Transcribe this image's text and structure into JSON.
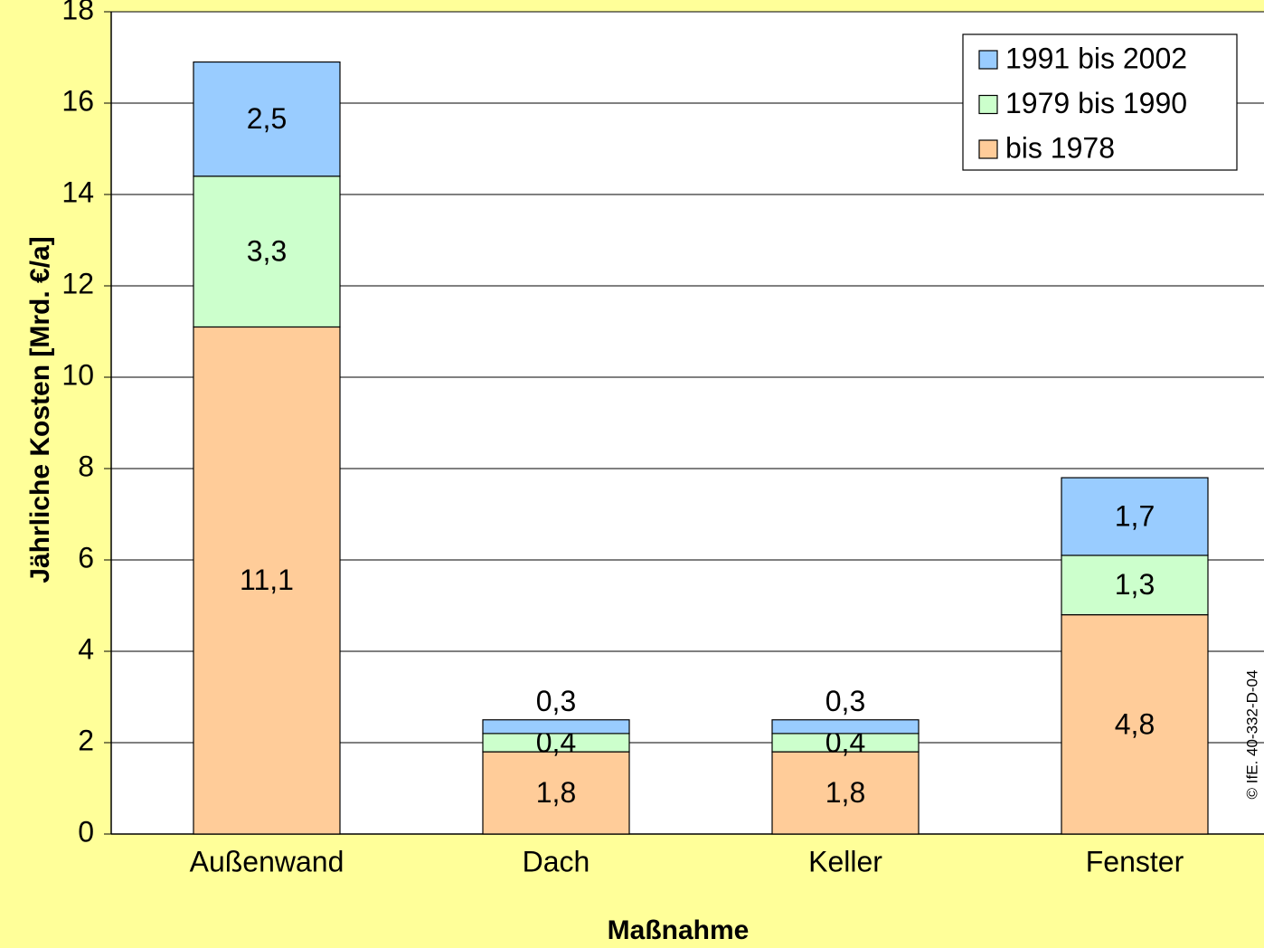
{
  "chart_data": {
    "type": "stacked_bar",
    "y_label": "Jährliche Kosten [Mrd. €/a]",
    "x_label": "Maßnahme",
    "annotation": "© IfE. 40-332-D-04",
    "categories": [
      "Außenwand",
      "Dach",
      "Keller",
      "Fenster"
    ],
    "series": [
      {
        "name": "bis 1978",
        "color": "#ffcc99",
        "values": [
          11.1,
          1.8,
          1.8,
          4.8
        ],
        "value_labels": [
          "11,1",
          "1,8",
          "1,8",
          "4,8"
        ]
      },
      {
        "name": "1979 bis 1990",
        "color": "#ccffcc",
        "values": [
          3.3,
          0.4,
          0.4,
          1.3
        ],
        "value_labels": [
          "3,3",
          "0,4",
          "0,4",
          "1,3"
        ]
      },
      {
        "name": "1991 bis 2002",
        "color": "#99ccff",
        "values": [
          2.5,
          0.3,
          0.3,
          1.7
        ],
        "value_labels": [
          "2,5",
          "0,3",
          "0,3",
          "1,7"
        ]
      }
    ],
    "ylim": [
      0,
      18
    ],
    "yticks": [
      0,
      2,
      4,
      6,
      8,
      10,
      12,
      14,
      16,
      18
    ],
    "grid": true,
    "legend": "upper right"
  }
}
